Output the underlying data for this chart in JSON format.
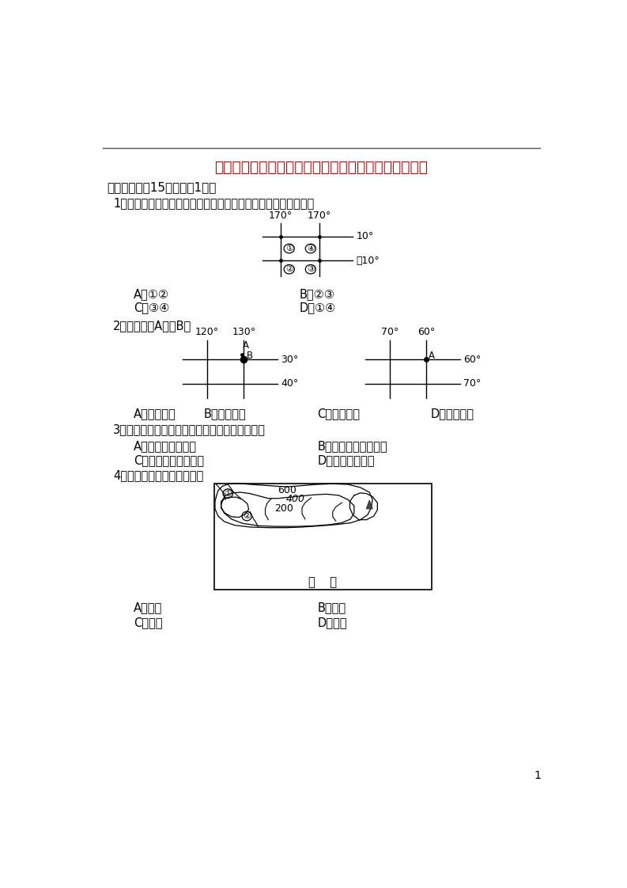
{
  "title": "江西省吉安市朝宗实验学校九年级地理上学期期中试题",
  "section1": "一、选择题（15分，每题1分）",
  "q1": "1．图中四点既位于北半球，又位于西北球，同时又是低纬度的有",
  "q1_opts_row1": [
    "A．①②",
    "B．②③"
  ],
  "q1_opts_row2": [
    "C．③④",
    "D．①④"
  ],
  "q2": "2．下图中，A位于B的",
  "q2_opts": [
    "A．正北方向",
    "B．东南方向",
    "C．西南方向",
    "D．西北方向"
  ],
  "q3": "3．下列地区的气候特点主要由纬度原因造成的是",
  "q3_opts_row1": [
    "A．海南岛终年如夏",
    "B．青藏高原气候寒冷"
  ],
  "q3_opts_row2": [
    "C．新疆地区气候干燥",
    "D．威海夏季凉爽"
  ],
  "q4": "4．图中看不到的地形部位是",
  "q4_opts_row1": [
    "A．鞍部",
    "B．山峰"
  ],
  "q4_opts_row2": [
    "C．山脊",
    "D．山谷"
  ],
  "page_num": "1",
  "bg_color": "#ffffff",
  "text_color": "#000000",
  "title_color": "#cc0000"
}
